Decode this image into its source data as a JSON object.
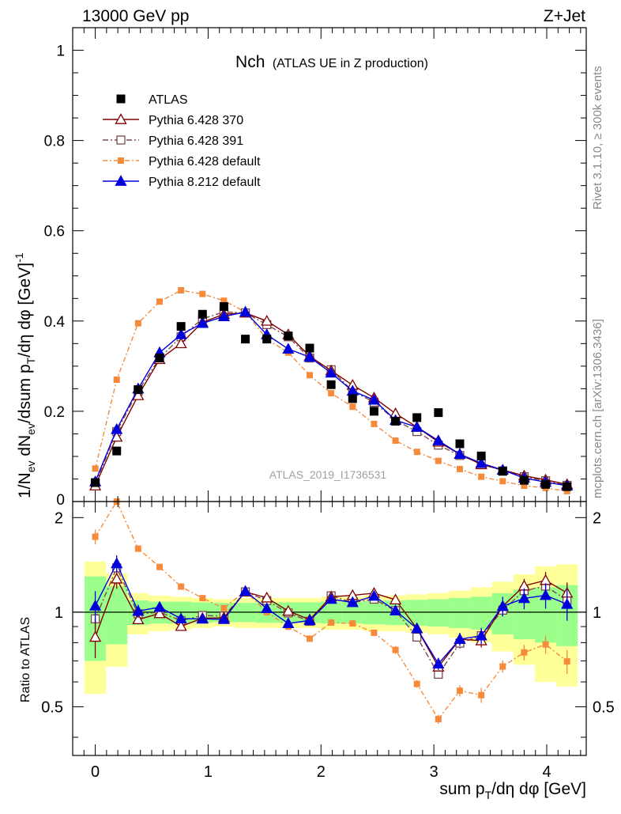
{
  "header": {
    "energy": "13000 GeV pp",
    "process": "Z+Jet"
  },
  "side": {
    "rivet": "Rivet 3.1.10, ≥ 300k events",
    "mcplots": "mcplots.cern.ch [arXiv:1306.3436]"
  },
  "chart_data": {
    "type": "scatter",
    "title_main": "Nch",
    "title_sub": "(ATLAS UE in Z production)",
    "analysis": "ATLAS_2019_I1736531",
    "xlabel": "sum p_T/dη dφ [GeV]",
    "ylabel": "1/N_ev dN_ev/dsum p_T/dη dφ [GeV]^-1",
    "ratio_ylabel": "Ratio to ATLAS",
    "xlim": [
      -0.2,
      4.35
    ],
    "ylim": [
      0,
      1.05
    ],
    "ratio_ylim": [
      0.35,
      2.25
    ],
    "x_ticks": [
      0,
      1,
      2,
      3,
      4
    ],
    "y_ticks": [
      0,
      0.2,
      0.4,
      0.6,
      0.8,
      1
    ],
    "y_tick_labels": [
      "0",
      "0.2",
      "0.4",
      "0.6",
      "0.8",
      "1"
    ],
    "ratio_ticks": [
      0.5,
      1,
      2
    ],
    "ratio_tick_labels": [
      "0.5",
      "1",
      "2"
    ],
    "x": [
      0,
      0.19,
      0.38,
      0.57,
      0.76,
      0.95,
      1.14,
      1.33,
      1.52,
      1.71,
      1.9,
      2.09,
      2.28,
      2.47,
      2.66,
      2.85,
      3.04,
      3.23,
      3.42,
      3.61,
      3.8,
      3.99,
      4.18
    ],
    "data": {
      "name": "ATLAS",
      "values": [
        0.042,
        0.112,
        0.248,
        0.318,
        0.388,
        0.415,
        0.432,
        0.36,
        0.36,
        0.367,
        0.34,
        0.259,
        0.228,
        0.2,
        0.178,
        0.186,
        0.197,
        0.128,
        0.101,
        0.067,
        0.047,
        0.038,
        0.033
      ],
      "band_inner": [
        0.3,
        0.21,
        0.09,
        0.08,
        0.08,
        0.075,
        0.07,
        0.07,
        0.075,
        0.075,
        0.075,
        0.08,
        0.08,
        0.085,
        0.09,
        0.095,
        0.1,
        0.11,
        0.12,
        0.15,
        0.18,
        0.2,
        0.22
      ],
      "band_outer": [
        0.45,
        0.33,
        0.15,
        0.13,
        0.12,
        0.11,
        0.1,
        0.11,
        0.11,
        0.11,
        0.11,
        0.12,
        0.12,
        0.13,
        0.13,
        0.14,
        0.15,
        0.17,
        0.2,
        0.25,
        0.32,
        0.4,
        0.42
      ]
    },
    "series": [
      {
        "name": "Pythia 6.428 370",
        "color": "#800000",
        "marker": "triangle-open",
        "dash": "",
        "values": [
          0.035,
          0.143,
          0.235,
          0.315,
          0.35,
          0.397,
          0.415,
          0.418,
          0.4,
          0.37,
          0.322,
          0.29,
          0.258,
          0.23,
          0.195,
          0.165,
          0.132,
          0.105,
          0.082,
          0.07,
          0.057,
          0.048,
          0.038
        ],
        "errors": [
          0.005,
          0.01,
          0.008,
          0.008,
          0.008,
          0.008,
          0.008,
          0.008,
          0.008,
          0.006,
          0.006,
          0.006,
          0.006,
          0.006,
          0.005,
          0.005,
          0.004,
          0.004,
          0.004,
          0.003,
          0.003,
          0.003,
          0.003
        ]
      },
      {
        "name": "Pythia 6.428 391",
        "color": "#7a4a4a",
        "marker": "square-open",
        "dash": "7,3,2,3",
        "values": [
          0.04,
          0.155,
          0.245,
          0.318,
          0.365,
          0.405,
          0.42,
          0.418,
          0.392,
          0.365,
          0.318,
          0.292,
          0.245,
          0.22,
          0.18,
          0.155,
          0.125,
          0.102,
          0.085,
          0.068,
          0.055,
          0.046,
          0.036
        ],
        "errors": [
          0.005,
          0.01,
          0.008,
          0.008,
          0.008,
          0.008,
          0.008,
          0.008,
          0.008,
          0.006,
          0.006,
          0.006,
          0.006,
          0.006,
          0.005,
          0.005,
          0.004,
          0.004,
          0.004,
          0.003,
          0.003,
          0.003,
          0.003
        ]
      },
      {
        "name": "Pythia 6.428 default",
        "color": "#f58a3a",
        "marker": "square-filled",
        "dash": "6,3,2,3",
        "values": [
          0.073,
          0.27,
          0.395,
          0.443,
          0.468,
          0.46,
          0.445,
          0.42,
          0.36,
          0.33,
          0.28,
          0.24,
          0.21,
          0.172,
          0.135,
          0.11,
          0.09,
          0.072,
          0.055,
          0.045,
          0.035,
          0.03,
          0.023
        ],
        "errors": [
          0.004,
          0.006,
          0.006,
          0.006,
          0.006,
          0.006,
          0.006,
          0.006,
          0.005,
          0.005,
          0.004,
          0.004,
          0.004,
          0.004,
          0.004,
          0.003,
          0.003,
          0.003,
          0.003,
          0.002,
          0.002,
          0.002,
          0.002
        ]
      },
      {
        "name": "Pythia 8.212 default",
        "color": "#0000dd",
        "marker": "triangle-filled",
        "dash": "",
        "values": [
          0.044,
          0.16,
          0.25,
          0.33,
          0.37,
          0.395,
          0.41,
          0.42,
          0.37,
          0.338,
          0.32,
          0.285,
          0.245,
          0.225,
          0.18,
          0.165,
          0.135,
          0.105,
          0.085,
          0.07,
          0.052,
          0.043,
          0.035
        ],
        "errors": [
          0.005,
          0.01,
          0.012,
          0.012,
          0.01,
          0.01,
          0.01,
          0.012,
          0.01,
          0.008,
          0.008,
          0.008,
          0.008,
          0.006,
          0.006,
          0.006,
          0.006,
          0.005,
          0.005,
          0.005,
          0.004,
          0.004,
          0.004
        ]
      }
    ]
  }
}
